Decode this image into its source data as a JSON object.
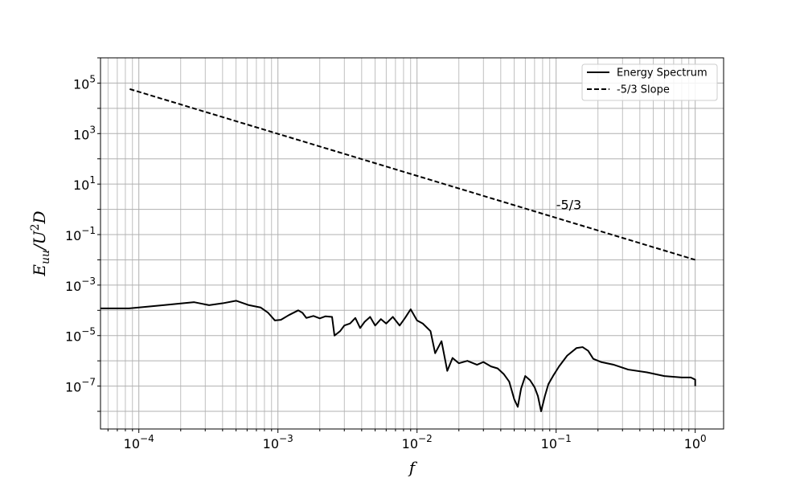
{
  "chart_data": {
    "type": "line",
    "title": "",
    "xscale": "log",
    "yscale": "log",
    "xlim": [
      5.3e-05,
      1.6
    ],
    "ylim": [
      2e-09,
      1000000.0
    ],
    "grid": "major and minor",
    "legend_position": "top-right",
    "x_ticks": [
      {
        "value": 0.0001,
        "mantissa": "10",
        "exp": "−4"
      },
      {
        "value": 0.001,
        "mantissa": "10",
        "exp": "−3"
      },
      {
        "value": 0.01,
        "mantissa": "10",
        "exp": "−2"
      },
      {
        "value": 0.1,
        "mantissa": "10",
        "exp": "−1"
      },
      {
        "value": 1,
        "mantissa": "10",
        "exp": "0"
      }
    ],
    "y_ticks": [
      {
        "value": 100000,
        "mantissa": "10",
        "exp": "5"
      },
      {
        "value": 1000,
        "mantissa": "10",
        "exp": "3"
      },
      {
        "value": 10,
        "mantissa": "10",
        "exp": "1"
      },
      {
        "value": 0.1,
        "mantissa": "10",
        "exp": "−1"
      },
      {
        "value": 0.001,
        "mantissa": "10",
        "exp": "−3"
      },
      {
        "value": 1e-05,
        "mantissa": "10",
        "exp": "−5"
      },
      {
        "value": 1e-07,
        "mantissa": "10",
        "exp": "−7"
      }
    ],
    "xlabel": "f",
    "ylabel": {
      "main": "E",
      "sub": "uu",
      "rest": "/U",
      "sup": "2",
      "tail": "D"
    },
    "series": [
      {
        "name": "Energy Spectrum",
        "style": "solid",
        "color": "#000000",
        "points": [
          [
            5.3e-05,
            0.00012
          ],
          [
            8.5e-05,
            0.00012
          ],
          [
            0.0001,
            0.00013
          ],
          [
            0.00015,
            0.00016
          ],
          [
            0.00025,
            0.00021
          ],
          [
            0.00032,
            0.00016
          ],
          [
            0.0004,
            0.00019
          ],
          [
            0.0005,
            0.00024
          ],
          [
            0.00062,
            0.00016
          ],
          [
            0.00075,
            0.00013
          ],
          [
            0.00085,
            8e-05
          ],
          [
            0.00095,
            4e-05
          ],
          [
            0.00105,
            4.2e-05
          ],
          [
            0.0012,
            6.5e-05
          ],
          [
            0.0014,
            0.0001
          ],
          [
            0.0015,
            8e-05
          ],
          [
            0.0016,
            5e-05
          ],
          [
            0.0018,
            6e-05
          ],
          [
            0.002,
            4.8e-05
          ],
          [
            0.0022,
            5.8e-05
          ],
          [
            0.00245,
            5.5e-05
          ],
          [
            0.00255,
            1e-05
          ],
          [
            0.0028,
            1.5e-05
          ],
          [
            0.003,
            2.5e-05
          ],
          [
            0.0033,
            3e-05
          ],
          [
            0.0036,
            5e-05
          ],
          [
            0.0039,
            2e-05
          ],
          [
            0.0042,
            3.5e-05
          ],
          [
            0.0046,
            5.5e-05
          ],
          [
            0.005,
            2.5e-05
          ],
          [
            0.0055,
            4.5e-05
          ],
          [
            0.006,
            3e-05
          ],
          [
            0.0067,
            5.5e-05
          ],
          [
            0.0075,
            2.5e-05
          ],
          [
            0.0082,
            5e-05
          ],
          [
            0.009,
            0.00011
          ],
          [
            0.01,
            4e-05
          ],
          [
            0.011,
            3e-05
          ],
          [
            0.0125,
            1.5e-05
          ],
          [
            0.0135,
            2e-06
          ],
          [
            0.015,
            6e-06
          ],
          [
            0.0165,
            4e-07
          ],
          [
            0.018,
            1.3e-06
          ],
          [
            0.02,
            8e-07
          ],
          [
            0.023,
            1e-06
          ],
          [
            0.027,
            7e-07
          ],
          [
            0.03,
            9e-07
          ],
          [
            0.034,
            6e-07
          ],
          [
            0.038,
            5e-07
          ],
          [
            0.042,
            3e-07
          ],
          [
            0.046,
            1.5e-07
          ],
          [
            0.05,
            3e-08
          ],
          [
            0.053,
            1.5e-08
          ],
          [
            0.056,
            8e-08
          ],
          [
            0.06,
            2.5e-07
          ],
          [
            0.065,
            1.7e-07
          ],
          [
            0.07,
            9e-08
          ],
          [
            0.074,
            4e-08
          ],
          [
            0.078,
            1e-08
          ],
          [
            0.083,
            4e-08
          ],
          [
            0.088,
            1.2e-07
          ],
          [
            0.095,
            2.5e-07
          ],
          [
            0.105,
            6e-07
          ],
          [
            0.12,
            1.6e-06
          ],
          [
            0.14,
            3.2e-06
          ],
          [
            0.155,
            3.5e-06
          ],
          [
            0.17,
            2.5e-06
          ],
          [
            0.185,
            1.2e-06
          ],
          [
            0.21,
            9e-07
          ],
          [
            0.26,
            7e-07
          ],
          [
            0.33,
            4.5e-07
          ],
          [
            0.45,
            3.5e-07
          ],
          [
            0.6,
            2.5e-07
          ],
          [
            0.8,
            2.2e-07
          ],
          [
            0.93,
            2.2e-07
          ],
          [
            1.0,
            1.8e-07
          ],
          [
            1.0,
            1e-07
          ]
        ]
      },
      {
        "name": "-5/3 Slope",
        "style": "dashed",
        "color": "#000000",
        "points": [
          [
            8.6e-05,
            58000.0
          ],
          [
            1.0,
            0.01
          ]
        ]
      }
    ],
    "annotations": [
      {
        "text": "-5/3",
        "x": 0.1,
        "y": 1.0
      }
    ]
  }
}
